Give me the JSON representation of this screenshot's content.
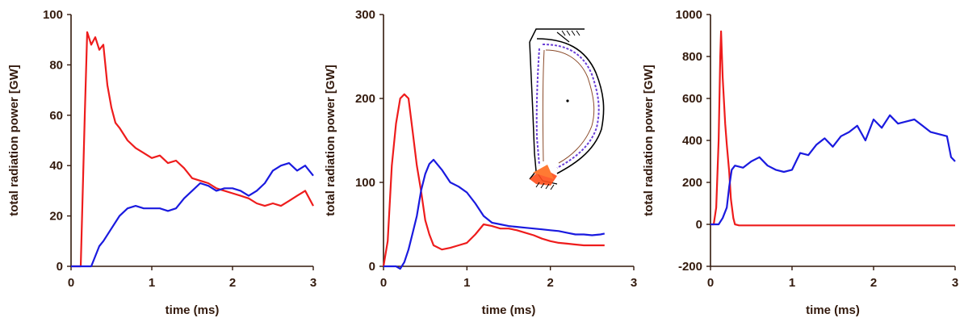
{
  "colors": {
    "red": "#ee1c1c",
    "blue": "#1a1adf",
    "axis": "#331a0d"
  },
  "chart_data": [
    {
      "type": "line",
      "xlabel": "time (ms)",
      "ylabel": "total radiation power [GW]",
      "xlim": [
        0,
        3
      ],
      "ylim": [
        0,
        100
      ],
      "xticks": [
        0,
        1,
        2,
        3
      ],
      "yticks": [
        0,
        20,
        40,
        60,
        80,
        100
      ],
      "series": [
        {
          "color": "#ee1c1c",
          "x": [
            0.0,
            0.12,
            0.17,
            0.2,
            0.25,
            0.3,
            0.35,
            0.4,
            0.45,
            0.5,
            0.55,
            0.6,
            0.7,
            0.8,
            0.9,
            1.0,
            1.1,
            1.2,
            1.3,
            1.4,
            1.5,
            1.6,
            1.7,
            1.8,
            1.9,
            2.0,
            2.1,
            2.2,
            2.3,
            2.4,
            2.5,
            2.6,
            2.7,
            2.8,
            2.9,
            3.0
          ],
          "y": [
            0,
            0,
            60,
            93,
            88,
            91,
            86,
            88,
            72,
            63,
            57,
            55,
            50,
            47,
            45,
            43,
            44,
            41,
            42,
            39,
            35,
            34,
            33,
            31,
            30,
            29,
            28,
            27,
            25,
            24,
            25,
            24,
            26,
            28,
            30,
            24
          ]
        },
        {
          "color": "#1a1adf",
          "x": [
            0.0,
            0.2,
            0.25,
            0.3,
            0.35,
            0.4,
            0.5,
            0.6,
            0.7,
            0.8,
            0.9,
            1.0,
            1.1,
            1.2,
            1.3,
            1.4,
            1.5,
            1.6,
            1.7,
            1.8,
            1.9,
            2.0,
            2.1,
            2.2,
            2.3,
            2.4,
            2.5,
            2.6,
            2.7,
            2.8,
            2.9,
            3.0
          ],
          "y": [
            0,
            0,
            0,
            4,
            8,
            10,
            15,
            20,
            23,
            24,
            23,
            23,
            23,
            22,
            23,
            27,
            30,
            33,
            32,
            30,
            31,
            31,
            30,
            28,
            30,
            33,
            38,
            40,
            41,
            38,
            40,
            36
          ]
        }
      ]
    },
    {
      "type": "line",
      "xlabel": "time (ms)",
      "ylabel": "total radiation power [GW]",
      "xlim": [
        0,
        3
      ],
      "ylim": [
        0,
        300
      ],
      "xticks": [
        0,
        1,
        2,
        3
      ],
      "yticks": [
        0,
        100,
        200,
        300
      ],
      "series": [
        {
          "color": "#ee1c1c",
          "x": [
            0.0,
            0.05,
            0.1,
            0.15,
            0.2,
            0.25,
            0.3,
            0.35,
            0.4,
            0.45,
            0.5,
            0.55,
            0.6,
            0.7,
            0.8,
            0.9,
            1.0,
            1.1,
            1.2,
            1.3,
            1.4,
            1.5,
            1.6,
            1.7,
            1.8,
            1.9,
            2.0,
            2.1,
            2.2,
            2.3,
            2.4,
            2.5,
            2.6,
            2.65
          ],
          "y": [
            0,
            30,
            120,
            170,
            200,
            205,
            200,
            160,
            120,
            90,
            55,
            38,
            25,
            20,
            22,
            25,
            28,
            38,
            50,
            48,
            45,
            45,
            43,
            40,
            37,
            33,
            30,
            28,
            27,
            26,
            25,
            25,
            25,
            25
          ]
        },
        {
          "color": "#1a1adf",
          "x": [
            0.0,
            0.1,
            0.15,
            0.2,
            0.25,
            0.3,
            0.35,
            0.4,
            0.45,
            0.5,
            0.55,
            0.6,
            0.7,
            0.8,
            0.9,
            1.0,
            1.1,
            1.2,
            1.3,
            1.4,
            1.5,
            1.6,
            1.7,
            1.8,
            1.9,
            2.0,
            2.1,
            2.2,
            2.3,
            2.4,
            2.5,
            2.6,
            2.65
          ],
          "y": [
            0,
            0,
            0,
            -3,
            5,
            20,
            40,
            60,
            90,
            110,
            122,
            127,
            115,
            100,
            95,
            88,
            75,
            60,
            52,
            50,
            48,
            47,
            46,
            45,
            44,
            43,
            42,
            40,
            38,
            38,
            37,
            38,
            39
          ]
        }
      ]
    },
    {
      "type": "line",
      "xlabel": "time (ms)",
      "ylabel": "total radiation power [GW]",
      "xlim": [
        0,
        3
      ],
      "ylim": [
        -200,
        1000
      ],
      "xticks": [
        0,
        1,
        2,
        3
      ],
      "yticks": [
        -200,
        0,
        200,
        400,
        600,
        800,
        1000
      ],
      "series": [
        {
          "color": "#ee1c1c",
          "x": [
            0.0,
            0.04,
            0.07,
            0.1,
            0.12,
            0.13,
            0.15,
            0.18,
            0.2,
            0.23,
            0.25,
            0.28,
            0.3,
            0.35,
            0.4,
            1.0,
            2.0,
            3.0
          ],
          "y": [
            0,
            0,
            80,
            400,
            800,
            920,
            700,
            480,
            380,
            250,
            120,
            30,
            0,
            -5,
            -5,
            -5,
            -5,
            -5
          ]
        },
        {
          "color": "#1a1adf",
          "x": [
            0.0,
            0.1,
            0.15,
            0.2,
            0.23,
            0.26,
            0.3,
            0.4,
            0.5,
            0.6,
            0.7,
            0.8,
            0.9,
            1.0,
            1.05,
            1.1,
            1.2,
            1.3,
            1.4,
            1.5,
            1.6,
            1.7,
            1.8,
            1.9,
            2.0,
            2.1,
            2.2,
            2.3,
            2.4,
            2.5,
            2.6,
            2.7,
            2.8,
            2.9,
            2.95,
            3.0
          ],
          "y": [
            0,
            0,
            30,
            80,
            180,
            260,
            280,
            270,
            300,
            320,
            280,
            260,
            250,
            260,
            300,
            340,
            330,
            380,
            410,
            370,
            420,
            440,
            470,
            400,
            500,
            460,
            520,
            480,
            490,
            500,
            470,
            440,
            430,
            420,
            320,
            300
          ]
        }
      ]
    }
  ]
}
